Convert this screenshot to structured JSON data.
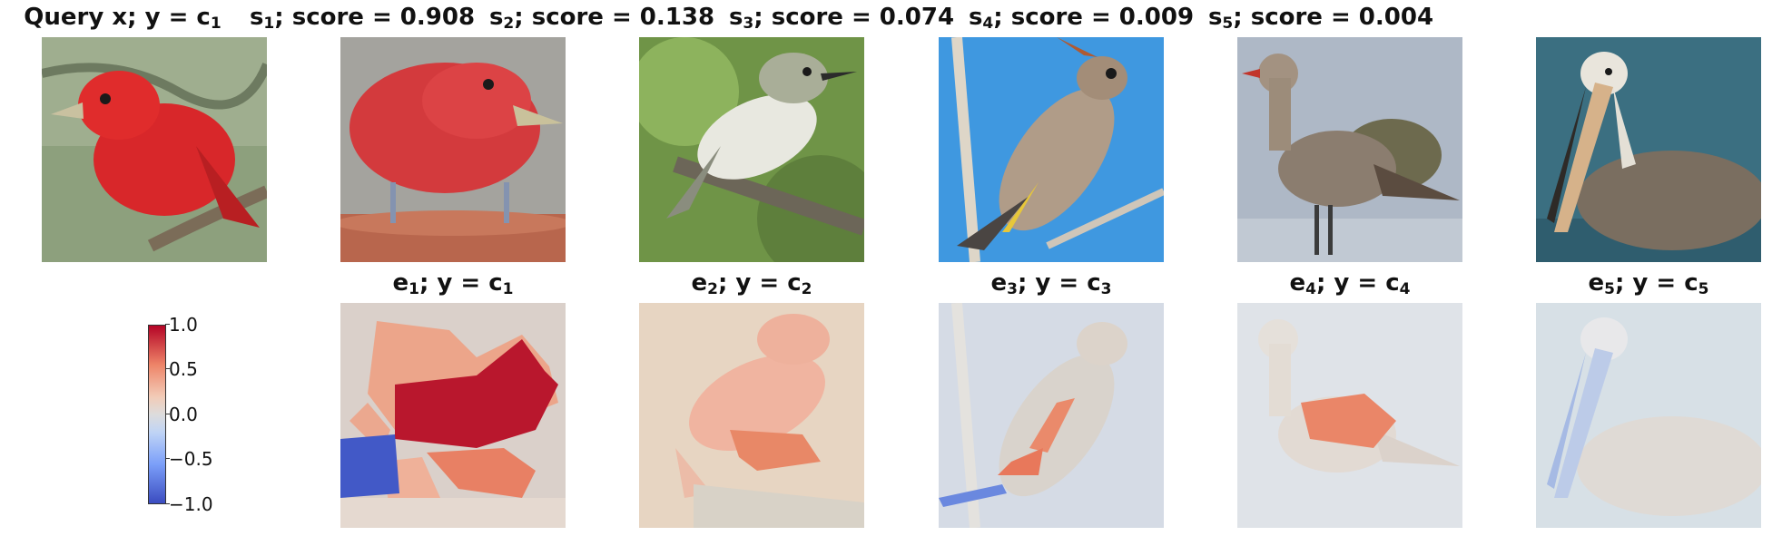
{
  "top_row": [
    {
      "prefix": "Query x; y = c",
      "sub": "1",
      "suffix": ""
    },
    {
      "prefix": "s",
      "sub": "1",
      "suffix": "; score = 0.908"
    },
    {
      "prefix": "s",
      "sub": "2",
      "suffix": "; score = 0.138"
    },
    {
      "prefix": "s",
      "sub": "3",
      "suffix": "; score = 0.074"
    },
    {
      "prefix": "s",
      "sub": "4",
      "suffix": "; score = 0.009"
    },
    {
      "prefix": "s",
      "sub": "5",
      "suffix": "; score = 0.004"
    }
  ],
  "bottom_row": [
    {
      "e": "e",
      "e_sub": "1",
      "mid": "; y = c",
      "c_sub": "1"
    },
    {
      "e": "e",
      "e_sub": "2",
      "mid": "; y = c",
      "c_sub": "2"
    },
    {
      "e": "e",
      "e_sub": "3",
      "mid": "; y = c",
      "c_sub": "3"
    },
    {
      "e": "e",
      "e_sub": "4",
      "mid": "; y = c",
      "c_sub": "4"
    },
    {
      "e": "e",
      "e_sub": "5",
      "mid": "; y = c",
      "c_sub": "5"
    }
  ],
  "colorbar": {
    "ticks": [
      "1.0",
      "0.5",
      "0.0",
      "−0.5",
      "−1.0"
    ],
    "range": [
      -1.0,
      1.0
    ],
    "colormap": "coolwarm"
  },
  "colors": {
    "positive": "#b40426",
    "negative": "#3b4cc0",
    "neutral": "#dddcdc"
  }
}
